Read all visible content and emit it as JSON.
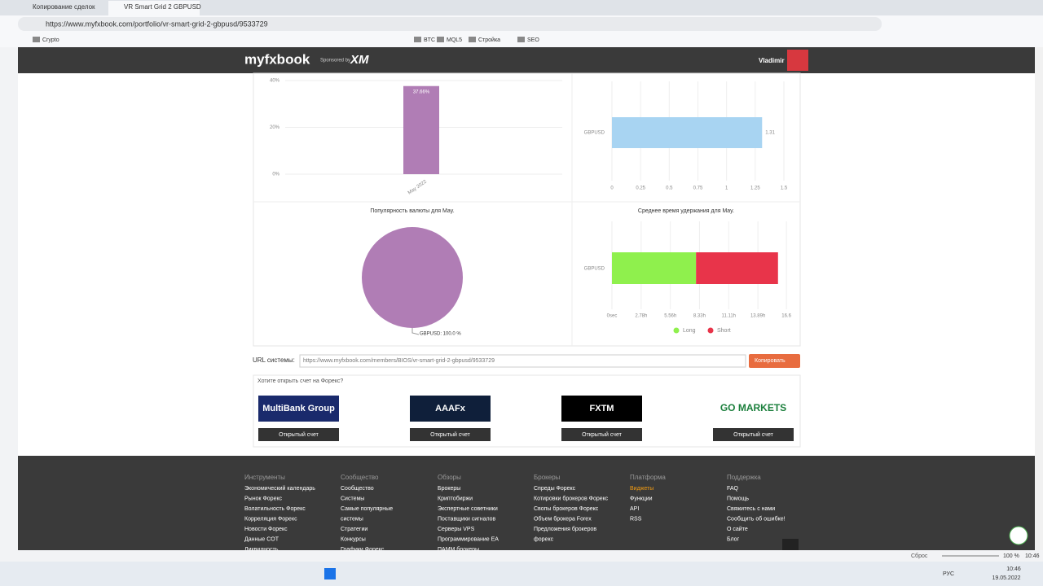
{
  "browser": {
    "tabs": [
      "Копирование сделок",
      "VR Smart Grid 2 GBPUSD"
    ],
    "url": "https://www.myfxbook.com/portfolio/vr-smart-grid-2-gbpusd/9533729",
    "bookmarks": [
      "Crypto",
      "BTC",
      "MQL5",
      "Стройка",
      "SEO"
    ]
  },
  "header": {
    "logo": "myfxbook",
    "sponsored": "Sponsored by",
    "sponsor": "XM",
    "user": "Vladimir"
  },
  "charts": [
    {
      "type": "bar",
      "categories": [
        "May 2022"
      ],
      "values": [
        37.66
      ],
      "value_labels": [
        "37.66%"
      ],
      "color": "#b07db5",
      "ylim": [
        0,
        40
      ],
      "yticks": [
        {
          "value": 0,
          "label": "0%"
        },
        {
          "value": 20,
          "label": "20%"
        },
        {
          "value": 40,
          "label": "40%"
        }
      ],
      "grid": true
    },
    {
      "type": "hbar",
      "categories": [
        "GBPUSD"
      ],
      "values": [
        1.31
      ],
      "color": "#a8d4f2",
      "xlim": [
        0,
        1.5
      ],
      "xticks": [
        0,
        0.25,
        0.5,
        0.75,
        1,
        1.25,
        1.5
      ],
      "grid": true
    },
    {
      "type": "pie",
      "title": "Популярность валюты для May.",
      "categories": [
        "GBPUSD"
      ],
      "values": [
        100.0
      ],
      "value_labels": [
        "GBPUSD: 100.0 %"
      ],
      "color": "#b07db5"
    },
    {
      "type": "stacked_hbar",
      "title": "Среднее время удержания для May.",
      "categories": [
        "GBPUSD"
      ],
      "series": [
        {
          "name": "Long",
          "color": "#8ff04d",
          "values": [
            8.0
          ]
        },
        {
          "name": "Short",
          "color": "#e8344a",
          "values": [
            7.8
          ]
        }
      ],
      "xlim": [
        0,
        16.67
      ],
      "xticks": [
        {
          "value": 0,
          "label": "0sec"
        },
        {
          "value": 2.78,
          "label": "2.78h"
        },
        {
          "value": 5.56,
          "label": "5.56h"
        },
        {
          "value": 8.33,
          "label": "8.33h"
        },
        {
          "value": 11.11,
          "label": "11.11h"
        },
        {
          "value": 13.89,
          "label": "13.89h"
        },
        16.6
      ],
      "grid": true
    }
  ],
  "url_row": {
    "label": "URL системы:",
    "url": "https://www.myfxbook.com/members/BIOS/vr-smart-grid-2-gbpusd/9533729",
    "button": "Копировать"
  },
  "brokers": {
    "title": "Хотите открыть счет на Форекс?",
    "items": [
      {
        "name": "MultiBank Group",
        "button": "Открытый счет"
      },
      {
        "name": "AAAFx",
        "button": "Открытый счет"
      },
      {
        "name": "FXTM",
        "button": "Открытый счет"
      },
      {
        "name": "GO MARKETS",
        "button": "Открытый счет"
      }
    ]
  },
  "footer": {
    "columns": [
      {
        "title": "Инструменты",
        "links": [
          "Экономический календарь",
          "Рынок Форекс",
          "Волатильность Форекс",
          "Корреляция Форекс",
          "Новости Форекс",
          "Данные COT",
          "Ликвидность"
        ]
      },
      {
        "title": "Сообщество",
        "links": [
          "Сообщество",
          "Системы",
          "Самые популярные",
          "системы",
          "Стратегии",
          "Конкурсы",
          "Графики Форекс"
        ]
      },
      {
        "title": "Обзоры",
        "links": [
          "Брокеры",
          "Криптобиржи",
          "Экспертные советники",
          "Поставщики сигналов",
          "Серверы VPS",
          "Программирование EA",
          "ПАММ брокеры"
        ]
      },
      {
        "title": "Брокеры",
        "links": [
          "Спреды Форекс",
          "Котировки брокеров Форекс",
          "Свопы брокеров Форекс",
          "Объем брокера Forex",
          "Предложения брокеров",
          "форекс"
        ]
      },
      {
        "title": "Платформа",
        "links": [
          "Виджеты",
          "Функции",
          "API",
          "RSS"
        ]
      },
      {
        "title": "Поддержка",
        "links": [
          "FAQ",
          "Помощь",
          "Свяжитесь с нами",
          "Сообщить об ошибке!",
          "О сайте",
          "Блог"
        ]
      }
    ]
  },
  "status": {
    "zoom_reset": "Сброс",
    "zoom": "100 %",
    "zoom_time": "10:46",
    "language": "РУС",
    "time": "10:46",
    "date": "19.05.2022"
  }
}
